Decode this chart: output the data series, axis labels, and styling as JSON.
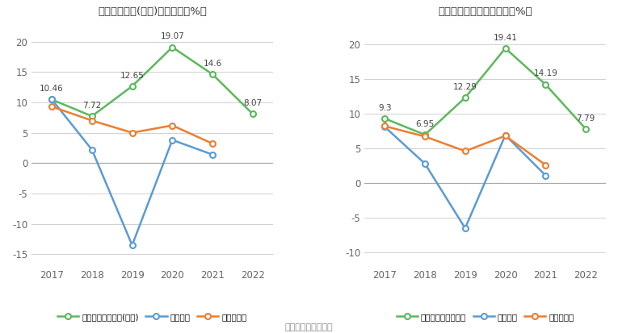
{
  "years": [
    2017,
    2018,
    2019,
    2020,
    2021,
    2022
  ],
  "chart1": {
    "title": "净资产收益率(加权)历年情况（%）",
    "company": [
      10.46,
      7.72,
      12.65,
      19.07,
      14.6,
      8.07
    ],
    "industry_mean": [
      10.5,
      2.2,
      -13.5,
      3.8,
      1.4,
      null
    ],
    "industry_median": [
      9.3,
      7.0,
      5.0,
      6.2,
      3.2,
      null
    ],
    "legend_company": "公司净资产收益率(加权)",
    "legend_mean": "行业均値",
    "legend_median": "行业中位数"
  },
  "chart2": {
    "title": "投入资本回报率历年情况（%）",
    "company": [
      9.3,
      6.95,
      12.29,
      19.41,
      14.19,
      7.79
    ],
    "industry_mean": [
      8.1,
      2.8,
      -6.5,
      6.9,
      1.1,
      null
    ],
    "industry_median": [
      8.2,
      6.7,
      4.6,
      6.8,
      2.6,
      null
    ],
    "legend_company": "公司投入资本回报率",
    "legend_mean": "行业均値",
    "legend_median": "行业中位数"
  },
  "color_company": "#5cb85c",
  "color_mean": "#5b9bd5",
  "color_median": "#ed7d31",
  "bg_color": "#ffffff",
  "grid_color": "#d0d0d0",
  "source_text": "数据来源：恒生聚源",
  "ylim1": [
    -17,
    23
  ],
  "ylim2": [
    -12,
    23
  ],
  "yticks1": [
    -15,
    -10,
    -5,
    0,
    5,
    10,
    15,
    20
  ],
  "yticks2": [
    -10,
    -5,
    0,
    5,
    10,
    15,
    20
  ]
}
